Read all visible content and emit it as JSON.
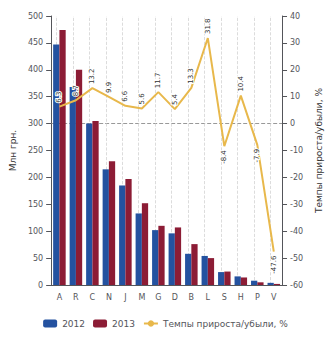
{
  "chart_data": {
    "type": "bar",
    "categories": [
      "A",
      "R",
      "C",
      "N",
      "J",
      "M",
      "G",
      "D",
      "B",
      "L",
      "S",
      "H",
      "P",
      "V"
    ],
    "series": [
      {
        "name": "2012",
        "type": "bar",
        "color": "#2452a0",
        "values": [
          447,
          368,
          300,
          215,
          185,
          133,
          102,
          96,
          58,
          54,
          24,
          16,
          8,
          4
        ]
      },
      {
        "name": "2013",
        "type": "bar",
        "color": "#8c1c35",
        "values": [
          474,
          400,
          305,
          230,
          197,
          152,
          110,
          107,
          76,
          50,
          25,
          14,
          5,
          2
        ]
      },
      {
        "name": "Темпы прироста/убыли, %",
        "type": "line",
        "axis": "y2",
        "color": "#e8b84b",
        "data_labels": true,
        "values": [
          6.3,
          8.7,
          13.2,
          9.9,
          6.6,
          5.6,
          11.7,
          5.4,
          13.3,
          31.8,
          -8.4,
          10.4,
          -7.9,
          -47.6
        ]
      }
    ],
    "ylabel": "Млн грн.",
    "y2label": "Темпы прироста/убыли, %",
    "ylim": [
      0,
      500
    ],
    "yticks": [
      0,
      50,
      100,
      150,
      200,
      250,
      300,
      350,
      400,
      450,
      500
    ],
    "y2lim": [
      -60,
      40
    ],
    "y2ticks": [
      -60,
      -50,
      -40,
      -30,
      -20,
      -10,
      0,
      10,
      20,
      30,
      40
    ],
    "hline": 300,
    "grid": "x",
    "legend": "bottom"
  }
}
